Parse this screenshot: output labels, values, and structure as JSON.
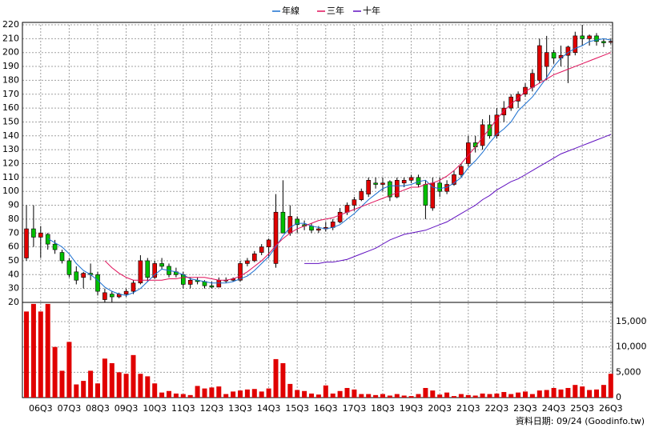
{
  "chart_data": {
    "type": "candlestick",
    "categories": [
      null,
      null,
      "06Q3",
      null,
      null,
      null,
      "07Q3",
      null,
      null,
      null,
      "08Q3",
      null,
      null,
      null,
      "09Q3",
      null,
      null,
      null,
      "10Q3",
      null,
      null,
      null,
      "11Q3",
      null,
      null,
      null,
      "12Q3",
      null,
      null,
      null,
      "13Q3",
      null,
      null,
      null,
      "14Q3",
      null,
      null,
      null,
      "15Q3",
      null,
      null,
      null,
      "16Q3",
      null,
      null,
      null,
      "17Q3",
      null,
      null,
      null,
      "18Q3",
      null,
      null,
      null,
      "19Q3",
      null,
      null,
      null,
      "20Q3",
      null,
      null,
      null,
      "21Q3",
      null,
      null,
      null,
      "22Q3",
      null,
      null,
      null,
      "23Q3",
      null,
      null,
      null,
      "24Q3",
      null,
      null,
      null,
      "25Q3",
      null,
      null,
      null,
      "26Q3"
    ],
    "ohlc": {
      "open": [
        52,
        73,
        67,
        69,
        62,
        56,
        50,
        42,
        38,
        41,
        40,
        22,
        26,
        24,
        26,
        28,
        34,
        50,
        38,
        48,
        46,
        42,
        40,
        33,
        36,
        35,
        32,
        31,
        36,
        36,
        36,
        48,
        50,
        56,
        60,
        48,
        85,
        70,
        80,
        76,
        75,
        72,
        73,
        74,
        78,
        85,
        90,
        94,
        98,
        106,
        105,
        107,
        96,
        106,
        108,
        110,
        105,
        88,
        106,
        100,
        105,
        112,
        120,
        135,
        133,
        148,
        140,
        155,
        160,
        165,
        170,
        175,
        180,
        190,
        200,
        196,
        198,
        200,
        212,
        210,
        212,
        208,
        208
      ],
      "high": [
        90,
        90,
        75,
        70,
        65,
        58,
        52,
        46,
        42,
        48,
        42,
        30,
        28,
        27,
        30,
        36,
        54,
        52,
        50,
        52,
        48,
        45,
        42,
        38,
        38,
        36,
        35,
        38,
        38,
        38,
        50,
        52,
        57,
        62,
        66,
        98,
        108,
        90,
        82,
        79,
        77,
        75,
        78,
        80,
        88,
        92,
        96,
        102,
        110,
        110,
        110,
        108,
        110,
        110,
        112,
        112,
        108,
        110,
        110,
        108,
        115,
        120,
        140,
        140,
        152,
        155,
        160,
        165,
        170,
        172,
        178,
        188,
        210,
        212,
        202,
        205,
        205,
        215,
        220,
        213,
        214,
        210,
        210
      ],
      "low": [
        50,
        60,
        52,
        58,
        55,
        48,
        38,
        33,
        30,
        36,
        25,
        20,
        20,
        23,
        24,
        26,
        33,
        35,
        37,
        44,
        38,
        38,
        30,
        30,
        33,
        30,
        30,
        31,
        34,
        35,
        35,
        46,
        49,
        54,
        52,
        45,
        70,
        68,
        70,
        72,
        70,
        70,
        71,
        72,
        77,
        83,
        86,
        93,
        96,
        102,
        100,
        93,
        95,
        103,
        106,
        103,
        80,
        86,
        96,
        98,
        104,
        110,
        118,
        128,
        130,
        138,
        138,
        150,
        158,
        160,
        168,
        172,
        178,
        180,
        192,
        190,
        178,
        198,
        205,
        205,
        205,
        204,
        206
      ],
      "close": [
        73,
        67,
        70,
        62,
        58,
        50,
        40,
        36,
        41,
        40,
        28,
        27,
        24,
        26,
        28,
        34,
        50,
        38,
        48,
        46,
        40,
        40,
        33,
        36,
        35,
        32,
        31,
        36,
        36,
        37,
        48,
        50,
        55,
        60,
        65,
        85,
        70,
        82,
        76,
        75,
        72,
        73,
        74,
        78,
        85,
        90,
        94,
        100,
        108,
        105,
        106,
        96,
        108,
        108,
        110,
        105,
        90,
        106,
        100,
        105,
        112,
        118,
        135,
        132,
        148,
        140,
        155,
        160,
        168,
        170,
        175,
        185,
        205,
        200,
        196,
        198,
        204,
        212,
        210,
        212,
        208,
        207,
        208
      ],
      "up_color": "#e00000",
      "down_color": "#00c000"
    },
    "series": [
      {
        "name": "年線",
        "color": "#1a6fd0",
        "values": [
          null,
          null,
          null,
          66,
          63,
          60,
          55,
          48,
          43,
          40,
          36,
          31,
          28,
          26,
          25,
          27,
          30,
          35,
          40,
          44,
          43,
          42,
          40,
          37,
          36,
          35,
          34,
          34,
          34,
          35,
          37,
          39,
          43,
          48,
          53,
          60,
          68,
          74,
          77,
          77,
          75,
          74,
          73,
          74,
          76,
          80,
          84,
          89,
          94,
          98,
          102,
          104,
          104,
          104,
          105,
          107,
          108,
          103,
          102,
          103,
          106,
          110,
          117,
          122,
          128,
          135,
          141,
          145,
          150,
          158,
          163,
          168,
          175,
          182,
          190,
          196,
          200,
          203,
          205,
          208,
          209,
          210,
          209
        ]
      },
      {
        "name": "三年",
        "color": "#e0105a",
        "values": [
          null,
          null,
          null,
          null,
          null,
          null,
          null,
          null,
          null,
          null,
          null,
          50,
          45,
          41,
          38,
          36,
          36,
          36,
          36,
          36,
          37,
          37,
          38,
          38,
          38,
          38,
          37,
          36,
          36,
          37,
          39,
          42,
          46,
          50,
          55,
          61,
          66,
          70,
          73,
          75,
          77,
          79,
          80,
          81,
          83,
          85,
          87,
          89,
          91,
          93,
          95,
          97,
          99,
          101,
          103,
          103,
          105,
          106,
          108,
          111,
          115,
          120,
          126,
          132,
          139,
          145,
          152,
          158,
          163,
          167,
          172,
          175,
          178,
          181,
          184,
          186,
          188,
          190,
          192,
          194,
          196,
          198,
          200
        ]
      },
      {
        "name": "十年",
        "color": "#6010c0",
        "values": [
          null,
          null,
          null,
          null,
          null,
          null,
          null,
          null,
          null,
          null,
          null,
          null,
          null,
          null,
          null,
          null,
          null,
          null,
          null,
          null,
          null,
          null,
          null,
          null,
          null,
          null,
          null,
          null,
          null,
          null,
          null,
          null,
          null,
          null,
          null,
          null,
          null,
          null,
          null,
          48,
          48,
          48,
          49,
          49,
          50,
          51,
          53,
          55,
          57,
          59,
          62,
          65,
          67,
          69,
          70,
          71,
          72,
          74,
          76,
          78,
          81,
          84,
          87,
          90,
          94,
          97,
          101,
          104,
          107,
          109,
          112,
          115,
          118,
          121,
          124,
          127,
          129,
          131,
          133,
          135,
          137,
          139,
          141
        ]
      }
    ],
    "ylim": [
      20,
      220
    ],
    "yticks": [
      20,
      30,
      40,
      50,
      60,
      70,
      80,
      90,
      100,
      110,
      120,
      130,
      140,
      150,
      160,
      170,
      180,
      190,
      200,
      210,
      220
    ],
    "grid": true,
    "legend": "top",
    "volume": {
      "color": "#e00000",
      "values": [
        17000,
        18500,
        17000,
        18500,
        10000,
        5300,
        11000,
        2600,
        3300,
        5300,
        2800,
        7700,
        6800,
        5000,
        4700,
        8400,
        4700,
        4200,
        2800,
        1000,
        1300,
        800,
        700,
        500,
        2300,
        1800,
        2000,
        2200,
        700,
        1200,
        1400,
        1600,
        1700,
        1200,
        1800,
        7600,
        6800,
        2700,
        1500,
        1300,
        800,
        600,
        2400,
        800,
        1300,
        1900,
        1600,
        700,
        700,
        500,
        700,
        400,
        700,
        400,
        300,
        700,
        1900,
        1400,
        600,
        1000,
        300,
        700,
        500,
        400,
        800,
        700,
        800,
        1100,
        700,
        1000,
        1200,
        700,
        1400,
        1500,
        1900,
        1600,
        1900,
        2500,
        2200,
        1500,
        1600,
        2500,
        4700
      ],
      "ylim": [
        0,
        18800
      ],
      "yticks": [
        0,
        {
          "value": 5000,
          "label": "5,000"
        },
        {
          "value": 10000,
          "label": "10,000"
        },
        {
          "value": 15000,
          "label": "15,000"
        }
      ]
    },
    "annotation": "資料日期: 09/24 (Goodinfo.tw)"
  }
}
